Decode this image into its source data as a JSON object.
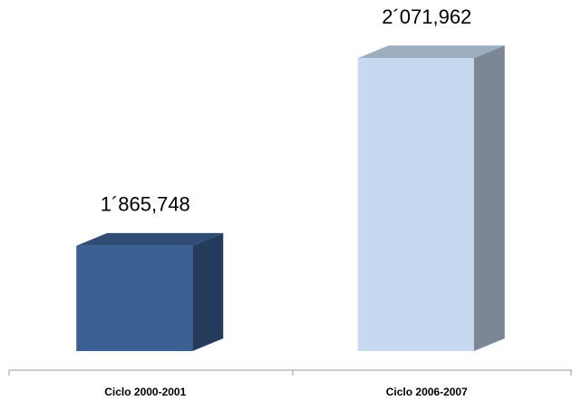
{
  "chart_data": {
    "type": "bar3d",
    "categories": [
      "Ciclo 2000-2001",
      "Ciclo 2006-2007"
    ],
    "values": [
      1865748,
      2071962
    ],
    "value_labels": [
      "1´865,748",
      "2´071,962"
    ],
    "colors": [
      "#3a5f92",
      "#c6d9f1"
    ],
    "ylim": [
      1750000,
      2100000
    ]
  }
}
